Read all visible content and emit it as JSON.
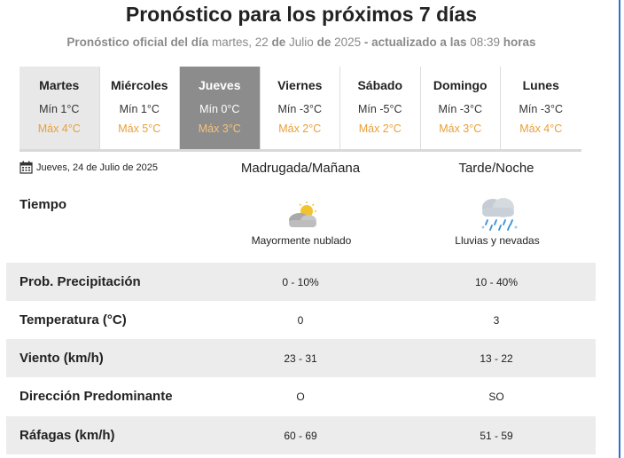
{
  "title": "Pronóstico para los próximos 7 días",
  "subtitle": {
    "prefix": "Pronóstico oficial del día",
    "date_part1": "martes, 22",
    "de1": "de",
    "date_part2": "Julio",
    "de2": "de",
    "year": "2025",
    "updated_label": "- actualizado a las",
    "time": "08:39",
    "hours": "horas"
  },
  "days": [
    {
      "name": "Martes",
      "min": "Mín 1°C",
      "max": "Máx 4°C"
    },
    {
      "name": "Miércoles",
      "min": "Mín 1°C",
      "max": "Máx 5°C"
    },
    {
      "name": "Jueves",
      "min": "Mín 0°C",
      "max": "Máx 3°C"
    },
    {
      "name": "Viernes",
      "min": "Mín -3°C",
      "max": "Máx 2°C"
    },
    {
      "name": "Sábado",
      "min": "Mín -5°C",
      "max": "Máx 2°C"
    },
    {
      "name": "Domingo",
      "min": "Mín -3°C",
      "max": "Máx 3°C"
    },
    {
      "name": "Lunes",
      "min": "Mín -3°C",
      "max": "Máx 4°C"
    }
  ],
  "selected_day": "Jueves",
  "detail": {
    "date": "Jueves, 24 de Julio de 2025",
    "col1": "Madrugada/Mañana",
    "col2": "Tarde/Noche",
    "tiempo_label": "Tiempo",
    "wx1": {
      "icon": "partly-cloudy-icon",
      "label": "Mayormente nublado"
    },
    "wx2": {
      "icon": "rain-snow-icon",
      "label": "Lluvias y nevadas"
    },
    "rows": [
      {
        "label": "Prob. Precipitación",
        "v1": "0 - 10%",
        "v2": "10 - 40%"
      },
      {
        "label": "Temperatura (°C)",
        "v1": "0",
        "v2": "3"
      },
      {
        "label": "Viento (km/h)",
        "v1": "23 - 31",
        "v2": "13 - 22"
      },
      {
        "label": "Dirección Predominante",
        "v1": "O",
        "v2": "SO"
      },
      {
        "label": "Ráfagas (km/h)",
        "v1": "60 - 69",
        "v2": "51 - 59"
      }
    ]
  },
  "colors": {
    "max_temp": "#e8a03a",
    "selected_tab": "#8c8c8c",
    "first_tab": "#e8e8e8",
    "row_stripe": "#ececec",
    "accent_rule": "#2f6fd1"
  }
}
